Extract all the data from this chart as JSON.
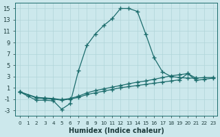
{
  "background_color": "#cce8ec",
  "grid_color": "#b0d4d8",
  "line_color": "#1a6b6b",
  "xlabel": "Humidex (Indice chaleur)",
  "xlim": [
    -0.5,
    23.5
  ],
  "ylim": [
    -4.0,
    16.0
  ],
  "xticks": [
    0,
    1,
    2,
    3,
    4,
    5,
    6,
    7,
    8,
    9,
    10,
    11,
    12,
    13,
    14,
    15,
    16,
    17,
    18,
    19,
    20,
    21,
    22,
    23
  ],
  "yticks": [
    -3,
    -1,
    1,
    3,
    5,
    7,
    9,
    11,
    13,
    15
  ],
  "curves": [
    {
      "x": [
        0,
        1,
        2,
        3,
        4,
        5,
        6,
        7,
        8,
        9,
        10,
        11,
        12,
        13,
        14,
        15,
        16,
        17,
        18,
        19,
        20,
        21
      ],
      "y": [
        0.3,
        -0.5,
        -1.2,
        -1.2,
        -1.3,
        -2.8,
        -1.8,
        4.0,
        8.5,
        10.5,
        12.0,
        13.2,
        15.0,
        15.0,
        14.5,
        10.5,
        6.3,
        3.8,
        3.0,
        2.8,
        2.7,
        2.7
      ]
    },
    {
      "x": [
        0,
        2,
        3,
        4,
        5,
        6,
        7,
        8,
        9,
        10,
        11,
        12,
        13,
        14,
        15,
        16,
        17,
        18,
        19,
        20,
        21,
        22,
        23
      ],
      "y": [
        0.3,
        -0.7,
        -0.8,
        -0.9,
        -1.1,
        -0.9,
        -0.5,
        0.1,
        0.5,
        0.8,
        1.1,
        1.4,
        1.7,
        2.0,
        2.2,
        2.5,
        2.8,
        3.1,
        3.3,
        3.5,
        2.7,
        2.8,
        2.8
      ]
    },
    {
      "x": [
        0,
        2,
        3,
        4,
        5,
        6,
        7,
        8,
        9,
        10,
        11,
        12,
        13,
        14,
        15,
        16,
        17,
        18,
        19,
        20,
        21,
        22,
        23
      ],
      "y": [
        0.3,
        -0.8,
        -0.9,
        -1.0,
        -1.2,
        -1.0,
        -0.7,
        -0.2,
        0.1,
        0.4,
        0.7,
        1.0,
        1.2,
        1.4,
        1.6,
        1.8,
        2.0,
        2.2,
        2.4,
        3.5,
        2.3,
        2.5,
        2.7
      ]
    }
  ]
}
